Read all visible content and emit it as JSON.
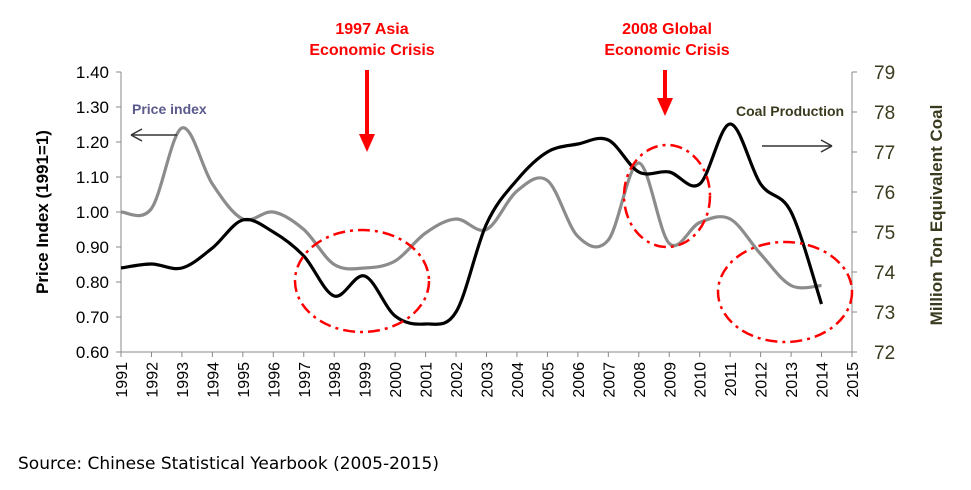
{
  "chart_data": {
    "type": "line",
    "x": [
      1991,
      1992,
      1993,
      1994,
      1995,
      1996,
      1997,
      1998,
      1999,
      2000,
      2001,
      2002,
      2003,
      2004,
      2005,
      2006,
      2007,
      2008,
      2009,
      2010,
      2011,
      2012,
      2013,
      2014
    ],
    "x_ticks": [
      "1991",
      "1992",
      "1993",
      "1994",
      "1995",
      "1996",
      "1997",
      "1998",
      "1999",
      "2000",
      "2001",
      "2002",
      "2003",
      "2004",
      "2005",
      "2006",
      "2007",
      "2008",
      "2009",
      "2010",
      "2011",
      "2012",
      "2013",
      "2014",
      "2015"
    ],
    "xlim": [
      1991,
      2015
    ],
    "series": [
      {
        "name": "Price index",
        "axis": "left",
        "color": "#8c8c8c",
        "values": [
          1.0,
          1.01,
          1.24,
          1.08,
          0.98,
          1.0,
          0.95,
          0.85,
          0.84,
          0.86,
          0.94,
          0.98,
          0.95,
          1.06,
          1.09,
          0.93,
          0.92,
          1.14,
          0.91,
          0.97,
          0.98,
          0.88,
          0.79,
          0.79
        ]
      },
      {
        "name": "Coal Production",
        "axis": "right",
        "color": "#000000",
        "values": [
          74.1,
          74.2,
          74.1,
          74.6,
          75.3,
          75.0,
          74.4,
          73.4,
          73.9,
          72.9,
          72.7,
          73.0,
          75.2,
          76.3,
          77.0,
          77.2,
          77.3,
          76.5,
          76.5,
          76.2,
          77.7,
          76.2,
          75.5,
          73.2
        ]
      }
    ],
    "left_axis": {
      "label": "Price Index (1991=1)",
      "ylim": [
        0.6,
        1.4
      ],
      "ticks": [
        "0.60",
        "0.70",
        "0.80",
        "0.90",
        "1.00",
        "1.10",
        "1.20",
        "1.30",
        "1.40"
      ]
    },
    "right_axis": {
      "label": "Million Ton Equivalent Coal",
      "ylim": [
        72,
        79
      ],
      "ticks": [
        "72",
        "73",
        "74",
        "75",
        "76",
        "77",
        "78",
        "79"
      ]
    },
    "annotations": {
      "asia_crisis": [
        "1997 Asia",
        "Economic Crisis"
      ],
      "global_crisis": [
        "2008 Global",
        "Economic Crisis"
      ],
      "price_index_label": "Price index",
      "coal_production_label": "Coal Production"
    },
    "colors": {
      "accent_red": "#ff0000",
      "price_label": "#5a5a8c",
      "coal_label": "#3a3a1e",
      "right_axis_label": "#3a3a1e"
    }
  },
  "source": "Source: Chinese Statistical Yearbook (2005-2015)"
}
